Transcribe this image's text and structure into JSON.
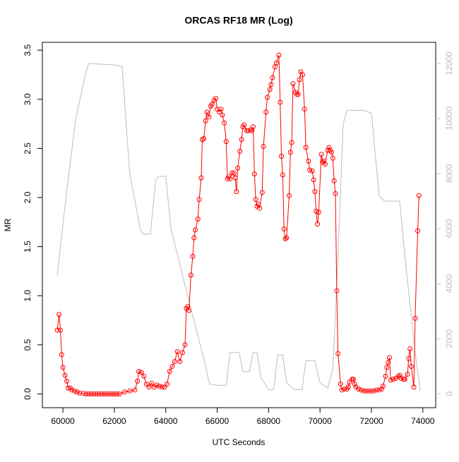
{
  "chart_data": {
    "type": "line",
    "title": "ORCAS RF18 MR (Log)",
    "x_label": "UTC Seconds",
    "y_label": "MR",
    "xlim": [
      59200,
      74500
    ],
    "xticks": [
      60000,
      62000,
      64000,
      66000,
      68000,
      70000,
      72000,
      74000
    ],
    "ylim": [
      -0.14,
      3.58
    ],
    "yticks": [
      {
        "value": 0,
        "label": "0.0"
      },
      {
        "value": 0.5,
        "label": "0.5"
      },
      {
        "value": 1,
        "label": "1.0"
      },
      {
        "value": 1.5,
        "label": "1.5"
      },
      {
        "value": 2,
        "label": "2.0"
      },
      {
        "value": 2.5,
        "label": "2.5"
      },
      {
        "value": 3,
        "label": "3.0"
      },
      {
        "value": 3.5,
        "label": "3.5"
      }
    ],
    "y2lim": [
      -510,
      12770
    ],
    "y2ticks": [
      0,
      2000,
      4000,
      6000,
      8000,
      10000,
      12000
    ],
    "series": [
      {
        "color": "#bebebe",
        "axis": "y2",
        "markers": false,
        "x": [
          59780,
          60100,
          60500,
          60900,
          61000,
          62000,
          62300,
          62600,
          63000,
          63100,
          63400,
          63600,
          63700,
          64000,
          64200,
          64600,
          65000,
          65500,
          65700,
          66000,
          66350,
          66500,
          66850,
          67000,
          67250,
          67400,
          67550,
          67700,
          68000,
          68200,
          68350,
          68550,
          68700,
          69000,
          69300,
          69450,
          69800,
          70000,
          70300,
          70500,
          70700,
          70900,
          71050,
          71700,
          72000,
          72300,
          72500,
          73100,
          73300,
          73700,
          73900
        ],
        "values": [
          4300,
          7000,
          10000,
          11700,
          12000,
          11950,
          11900,
          8000,
          6000,
          5800,
          5800,
          7700,
          7900,
          7900,
          6000,
          4500,
          3000,
          1200,
          350,
          300,
          300,
          1500,
          1500,
          800,
          800,
          1500,
          1500,
          600,
          150,
          150,
          1400,
          1400,
          400,
          150,
          150,
          1200,
          1200,
          400,
          200,
          900,
          5000,
          9800,
          10300,
          10300,
          10200,
          7200,
          7000,
          7000,
          5000,
          1500,
          100
        ]
      },
      {
        "color": "#ff0000",
        "markers": true,
        "x": [
          59780,
          59850,
          59900,
          59950,
          60000,
          60080,
          60150,
          60200,
          60280,
          60350,
          60450,
          60550,
          60650,
          60800,
          60900,
          61000,
          61100,
          61200,
          61300,
          61400,
          61500,
          61600,
          61700,
          61800,
          61900,
          62000,
          62100,
          62200,
          62400,
          62600,
          62800,
          62900,
          62950,
          63050,
          63150,
          63250,
          63350,
          63450,
          63550,
          63650,
          63750,
          63850,
          63950,
          64050,
          64150,
          64250,
          64350,
          64450,
          64550,
          64650,
          64750,
          64800,
          64850,
          64900,
          64980,
          65050,
          65100,
          65150,
          65250,
          65300,
          65380,
          65420,
          65480,
          65550,
          65600,
          65680,
          65750,
          65800,
          65880,
          65950,
          66000,
          66080,
          66150,
          66200,
          66280,
          66350,
          66400,
          66450,
          66500,
          66580,
          66650,
          66700,
          66750,
          66800,
          66880,
          66950,
          67000,
          67050,
          67150,
          67200,
          67300,
          67350,
          67400,
          67450,
          67500,
          67550,
          67600,
          67650,
          67750,
          67800,
          67900,
          67950,
          68050,
          68100,
          68150,
          68250,
          68300,
          68400,
          68450,
          68500,
          68550,
          68600,
          68650,
          68700,
          68800,
          68850,
          68900,
          68950,
          69050,
          69100,
          69150,
          69200,
          69250,
          69320,
          69400,
          69450,
          69550,
          69600,
          69700,
          69750,
          69800,
          69850,
          69900,
          69950,
          70050,
          70100,
          70150,
          70200,
          70300,
          70350,
          70400,
          70450,
          70500,
          70550,
          70600,
          70650,
          70700,
          70800,
          70850,
          70950,
          71050,
          71100,
          71150,
          71250,
          71300,
          71350,
          71400,
          71500,
          71600,
          71700,
          71800,
          71900,
          72000,
          72100,
          72200,
          72300,
          72400,
          72450,
          72550,
          72600,
          72650,
          72700,
          72750,
          72850,
          72950,
          73050,
          73100,
          73150,
          73250,
          73300,
          73400,
          73450,
          73500,
          73550,
          73650,
          73700,
          73800,
          73850
        ],
        "values": [
          0.65,
          0.81,
          0.65,
          0.4,
          0.27,
          0.19,
          0.13,
          0.06,
          0.06,
          0.04,
          0.03,
          0.02,
          0.01,
          0.005,
          0,
          0,
          0,
          0,
          0,
          0,
          0,
          0,
          0,
          0,
          0,
          0,
          0,
          0,
          0.02,
          0.03,
          0.04,
          0.13,
          0.23,
          0.22,
          0.18,
          0.1,
          0.07,
          0.11,
          0.07,
          0.09,
          0.08,
          0.07,
          0.07,
          0.1,
          0.23,
          0.28,
          0.33,
          0.43,
          0.33,
          0.42,
          0.5,
          0.87,
          0.89,
          0.85,
          1.21,
          1.4,
          1.59,
          1.67,
          1.78,
          1.98,
          2.2,
          2.59,
          2.6,
          2.78,
          2.87,
          2.82,
          2.93,
          2.95,
          2.99,
          3.01,
          2.9,
          2.87,
          2.9,
          2.84,
          2.76,
          2.57,
          2.19,
          2.21,
          2.19,
          2.25,
          2.25,
          2.2,
          2.06,
          2.3,
          2.47,
          2.59,
          2.72,
          2.74,
          2.68,
          2.68,
          2.69,
          2.68,
          2.72,
          2.24,
          1.98,
          1.91,
          1.93,
          1.89,
          2.05,
          2.52,
          2.87,
          3.02,
          3.1,
          3.15,
          3.22,
          3.33,
          3.37,
          3.45,
          2.97,
          2.42,
          2.23,
          1.68,
          1.58,
          1.59,
          2.02,
          2.46,
          2.56,
          3.16,
          3.07,
          3.05,
          3.05,
          3.2,
          3.28,
          3.25,
          2.9,
          2.51,
          2.37,
          2.28,
          2.27,
          2.18,
          2.06,
          1.86,
          1.73,
          1.85,
          2.44,
          2.36,
          2.37,
          2.34,
          2.48,
          2.51,
          2.48,
          2.46,
          2.4,
          2.17,
          2.04,
          1.05,
          0.41,
          0.1,
          0.04,
          0.05,
          0.05,
          0.07,
          0.12,
          0.15,
          0.15,
          0.1,
          0.07,
          0.05,
          0.04,
          0.03,
          0.03,
          0.03,
          0.03,
          0.03,
          0.04,
          0.04,
          0.05,
          0.08,
          0.18,
          0.27,
          0.32,
          0.37,
          0.14,
          0.15,
          0.16,
          0.18,
          0.19,
          0.16,
          0.15,
          0.15,
          0.2,
          0.36,
          0.46,
          0.28,
          0.07,
          0.77,
          1.66,
          2.02
        ]
      }
    ]
  }
}
